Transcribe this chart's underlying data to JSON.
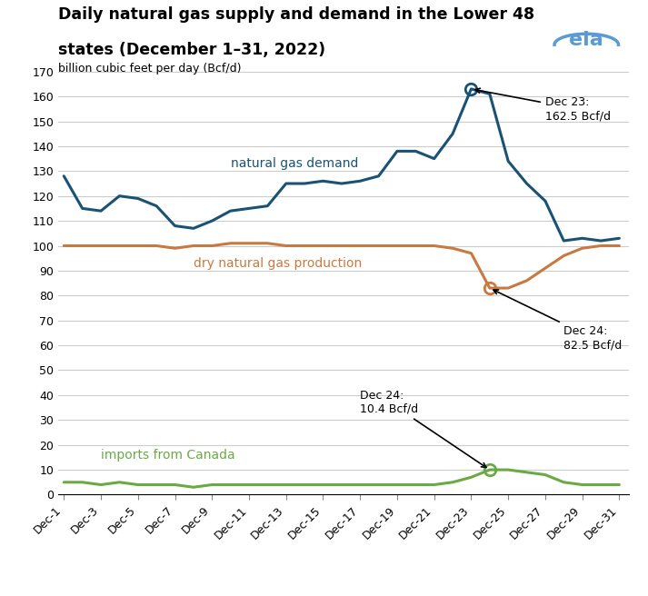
{
  "title_line1": "Daily natural gas supply and demand in the Lower 48",
  "title_line2": "states (December 1–31, 2022)",
  "ylabel": "billion cubic feet per day (Bcf/d)",
  "days": [
    1,
    2,
    3,
    4,
    5,
    6,
    7,
    8,
    9,
    10,
    11,
    12,
    13,
    14,
    15,
    16,
    17,
    18,
    19,
    20,
    21,
    22,
    23,
    24,
    25,
    26,
    27,
    28,
    29,
    30,
    31
  ],
  "demand": [
    128,
    115,
    114,
    120,
    119,
    116,
    108,
    107,
    110,
    114,
    115,
    116,
    125,
    125,
    126,
    125,
    126,
    128,
    138,
    138,
    135,
    145,
    163,
    161,
    134,
    125,
    118,
    102,
    103,
    102,
    103
  ],
  "production": [
    100,
    100,
    100,
    100,
    100,
    100,
    99,
    100,
    100,
    101,
    101,
    101,
    100,
    100,
    100,
    100,
    100,
    100,
    100,
    100,
    100,
    99,
    97,
    83,
    83,
    86,
    91,
    96,
    99,
    100,
    100
  ],
  "imports": [
    5,
    5,
    4,
    5,
    4,
    4,
    4,
    3,
    4,
    4,
    4,
    4,
    4,
    4,
    4,
    4,
    4,
    4,
    4,
    4,
    4,
    5,
    7,
    10,
    10,
    9,
    8,
    5,
    4,
    4,
    4
  ],
  "demand_color": "#1a5276",
  "production_color": "#c87941",
  "imports_color": "#6aaa45",
  "background_color": "#ffffff",
  "grid_color": "#cccccc",
  "ylim": [
    0,
    170
  ],
  "yticks": [
    0,
    10,
    20,
    30,
    40,
    50,
    60,
    70,
    80,
    90,
    100,
    110,
    120,
    130,
    140,
    150,
    160,
    170
  ],
  "xtick_labels": [
    "Dec-1",
    "Dec-3",
    "Dec-5",
    "Dec-7",
    "Dec-9",
    "Dec-11",
    "Dec-13",
    "Dec-15",
    "Dec-17",
    "Dec-19",
    "Dec-21",
    "Dec-23",
    "Dec-25",
    "Dec-27",
    "Dec-29",
    "Dec-31"
  ],
  "xtick_positions": [
    0,
    2,
    4,
    6,
    8,
    10,
    12,
    14,
    16,
    18,
    20,
    22,
    24,
    26,
    28,
    30
  ],
  "demand_label": "natural gas demand",
  "production_label": "dry natural gas production",
  "imports_label": "imports from Canada",
  "ann_demand_x": 22,
  "ann_demand_y": 163,
  "ann_demand_text": "Dec 23:\n162.5 Bcf/d",
  "ann_prod_x": 23,
  "ann_prod_y": 83,
  "ann_prod_text": "Dec 24:\n82.5 Bcf/d",
  "ann_imports_x": 23,
  "ann_imports_y": 10,
  "ann_imports_text": "Dec 24:\n10.4 Bcf/d"
}
